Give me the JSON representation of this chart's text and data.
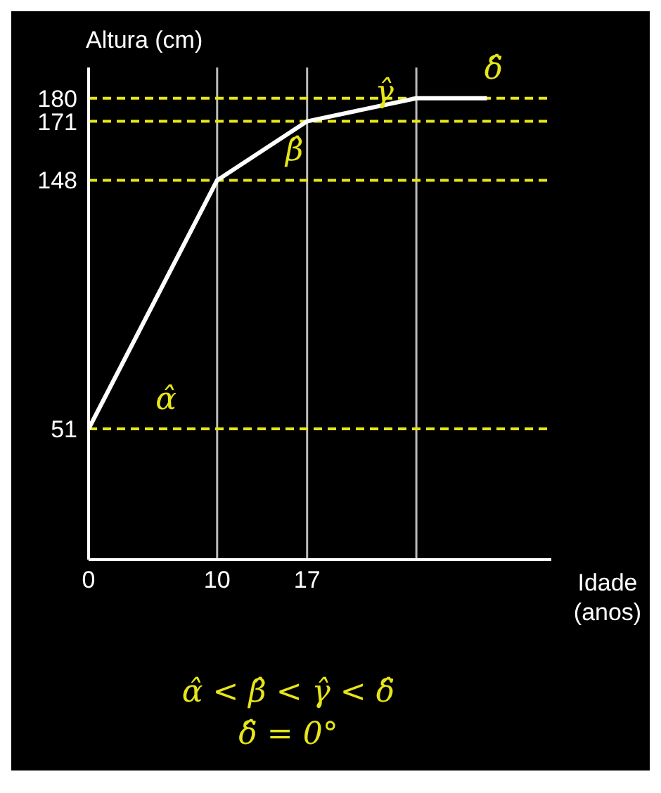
{
  "chart_data": {
    "type": "line",
    "xlabel": "Idade (anos)",
    "ylabel": "Altura (cm)",
    "x": [
      0,
      10,
      17,
      25.5,
      31
    ],
    "series": [
      {
        "color": "#ffffff",
        "values": [
          51,
          148,
          171,
          180,
          180
        ]
      }
    ],
    "xlim": [
      0,
      36
    ],
    "xticks": [
      0,
      10,
      17,
      {
        "value": 25.5,
        "label": null
      }
    ],
    "ylim": [
      0,
      192
    ],
    "yticks": [
      51,
      148,
      171,
      180
    ],
    "grid": "x",
    "marker": "none",
    "line_style": "solid",
    "legend": false,
    "ref_lines": [
      {
        "axis": "y",
        "value": 51,
        "color": "#e6e619",
        "line_style": "dashed"
      },
      {
        "axis": "y",
        "value": 148,
        "color": "#e6e619",
        "line_style": "dashed"
      },
      {
        "axis": "y",
        "value": 171,
        "color": "#e6e619",
        "line_style": "dashed"
      },
      {
        "axis": "y",
        "value": 180,
        "color": "#e6e619",
        "line_style": "dashed"
      }
    ],
    "annotations": [
      {
        "text": "α̂",
        "x": 0,
        "y": 51
      },
      {
        "text": "β̂",
        "x": 10,
        "y": 148
      },
      {
        "text": "γ̂",
        "x": 17,
        "y": 171
      },
      {
        "text": "δ̂",
        "x": 25.5,
        "y": 180
      },
      "α̂ < β̂ < γ̂ < δ̂",
      "δ̂ = 0°"
    ]
  }
}
